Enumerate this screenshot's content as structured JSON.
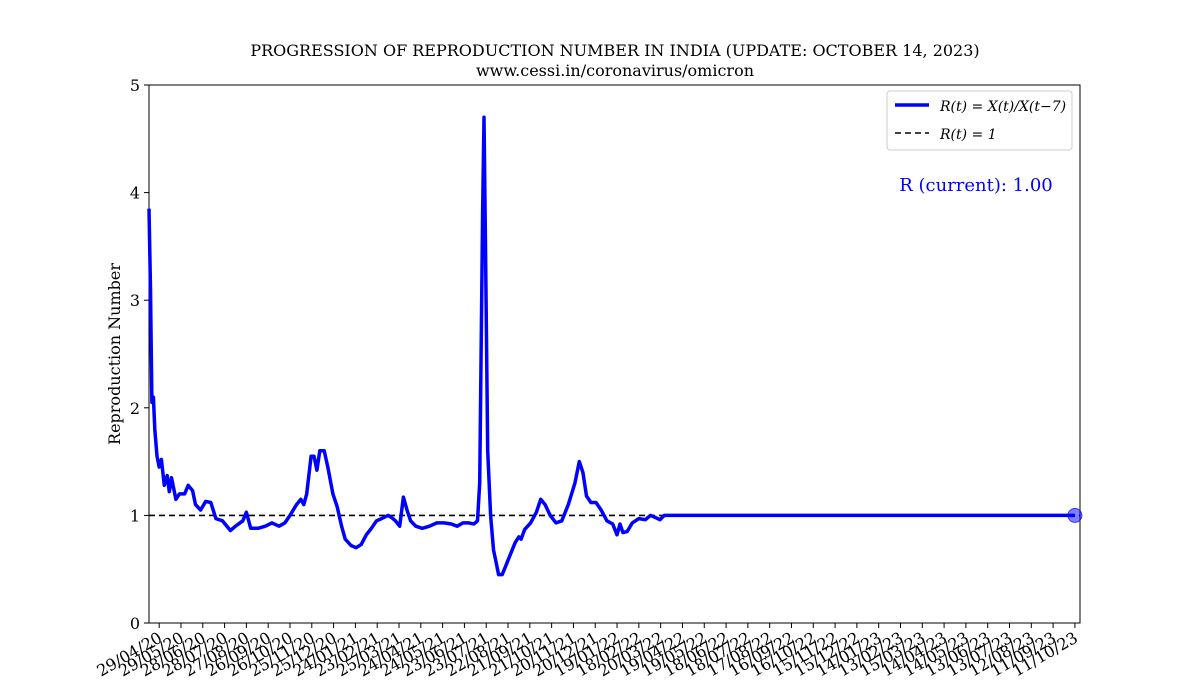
{
  "chart_data": {
    "type": "line",
    "title": "PROGRESSION OF REPRODUCTION NUMBER IN INDIA (UPDATE: OCTOBER 14, 2023)",
    "subtitle": "www.cessi.in/coronavirus/omicron",
    "xlabel": "",
    "ylabel": "Reproduction Number",
    "ylim": [
      0,
      5
    ],
    "yticks": [
      "0",
      "1",
      "2",
      "3",
      "4",
      "5"
    ],
    "xticks": [
      "29/04/20",
      "29/05/20",
      "28/06/20",
      "28/07/20",
      "27/08/20",
      "26/09/20",
      "26/10/20",
      "25/11/20",
      "25/12/20",
      "24/01/21",
      "23/02/21",
      "25/03/21",
      "24/04/21",
      "24/05/21",
      "23/06/21",
      "23/07/21",
      "22/08/21",
      "21/09/21",
      "21/10/21",
      "20/11/21",
      "20/12/21",
      "19/01/22",
      "18/02/22",
      "20/03/22",
      "19/04/22",
      "19/05/22",
      "18/06/22",
      "18/07/22",
      "17/08/22",
      "16/09/22",
      "16/10/22",
      "15/11/22",
      "15/12/22",
      "14/01/23",
      "13/02/23",
      "15/03/23",
      "14/04/23",
      "14/05/23",
      "13/06/23",
      "13/07/23",
      "12/08/23",
      "11/09/23",
      "11/10/23"
    ],
    "legend_position": "top-right",
    "grid": false,
    "annotation": "R (current): 1.00",
    "series": [
      {
        "name": "R(t) = X(t)/X(t−7)",
        "color": "#0000ff",
        "points": [
          [
            "2020-04-15",
            3.85
          ],
          [
            "2020-04-17",
            3.1
          ],
          [
            "2020-04-19",
            2.05
          ],
          [
            "2020-04-21",
            2.1
          ],
          [
            "2020-04-23",
            1.8
          ],
          [
            "2020-04-26",
            1.55
          ],
          [
            "2020-04-29",
            1.45
          ],
          [
            "2020-05-02",
            1.52
          ],
          [
            "2020-05-06",
            1.28
          ],
          [
            "2020-05-10",
            1.37
          ],
          [
            "2020-05-13",
            1.22
          ],
          [
            "2020-05-16",
            1.35
          ],
          [
            "2020-05-22",
            1.15
          ],
          [
            "2020-05-27",
            1.2
          ],
          [
            "2020-06-03",
            1.2
          ],
          [
            "2020-06-08",
            1.28
          ],
          [
            "2020-06-14",
            1.23
          ],
          [
            "2020-06-18",
            1.1
          ],
          [
            "2020-06-25",
            1.05
          ],
          [
            "2020-07-02",
            1.13
          ],
          [
            "2020-07-09",
            1.12
          ],
          [
            "2020-07-16",
            0.97
          ],
          [
            "2020-07-25",
            0.95
          ],
          [
            "2020-08-05",
            0.86
          ],
          [
            "2020-08-12",
            0.9
          ],
          [
            "2020-08-22",
            0.95
          ],
          [
            "2020-08-27",
            1.03
          ],
          [
            "2020-09-02",
            0.88
          ],
          [
            "2020-09-12",
            0.88
          ],
          [
            "2020-09-22",
            0.9
          ],
          [
            "2020-10-01",
            0.93
          ],
          [
            "2020-10-11",
            0.9
          ],
          [
            "2020-10-19",
            0.93
          ],
          [
            "2020-10-26",
            1.0
          ],
          [
            "2020-11-04",
            1.1
          ],
          [
            "2020-11-10",
            1.15
          ],
          [
            "2020-11-14",
            1.1
          ],
          [
            "2020-11-18",
            1.2
          ],
          [
            "2020-11-24",
            1.55
          ],
          [
            "2020-11-28",
            1.55
          ],
          [
            "2020-12-02",
            1.42
          ],
          [
            "2020-12-06",
            1.6
          ],
          [
            "2020-12-12",
            1.6
          ],
          [
            "2020-12-17",
            1.45
          ],
          [
            "2020-12-24",
            1.2
          ],
          [
            "2020-12-30",
            1.08
          ],
          [
            "2021-01-05",
            0.9
          ],
          [
            "2021-01-10",
            0.78
          ],
          [
            "2021-01-18",
            0.72
          ],
          [
            "2021-01-25",
            0.7
          ],
          [
            "2021-02-01",
            0.73
          ],
          [
            "2021-02-08",
            0.82
          ],
          [
            "2021-02-15",
            0.88
          ],
          [
            "2021-02-22",
            0.95
          ],
          [
            "2021-03-01",
            0.97
          ],
          [
            "2021-03-10",
            1.0
          ],
          [
            "2021-03-15",
            0.98
          ],
          [
            "2021-03-20",
            0.95
          ],
          [
            "2021-03-26",
            0.9
          ],
          [
            "2021-03-31",
            1.17
          ],
          [
            "2021-04-05",
            1.05
          ],
          [
            "2021-04-10",
            0.95
          ],
          [
            "2021-04-17",
            0.9
          ],
          [
            "2021-04-26",
            0.88
          ],
          [
            "2021-05-06",
            0.9
          ],
          [
            "2021-05-16",
            0.93
          ],
          [
            "2021-05-26",
            0.93
          ],
          [
            "2021-06-05",
            0.92
          ],
          [
            "2021-06-13",
            0.9
          ],
          [
            "2021-06-21",
            0.93
          ],
          [
            "2021-06-29",
            0.93
          ],
          [
            "2021-07-06",
            0.92
          ],
          [
            "2021-07-11",
            0.95
          ],
          [
            "2021-07-14",
            1.3
          ],
          [
            "2021-07-16",
            2.5
          ],
          [
            "2021-07-18",
            3.8
          ],
          [
            "2021-07-20",
            4.7
          ],
          [
            "2021-07-22",
            3.5
          ],
          [
            "2021-07-25",
            1.6
          ],
          [
            "2021-07-29",
            1.0
          ],
          [
            "2021-08-02",
            0.68
          ],
          [
            "2021-08-06",
            0.55
          ],
          [
            "2021-08-09",
            0.45
          ],
          [
            "2021-08-14",
            0.45
          ],
          [
            "2021-08-20",
            0.55
          ],
          [
            "2021-08-26",
            0.65
          ],
          [
            "2021-09-01",
            0.75
          ],
          [
            "2021-09-06",
            0.8
          ],
          [
            "2021-09-09",
            0.78
          ],
          [
            "2021-09-14",
            0.87
          ],
          [
            "2021-09-22",
            0.93
          ],
          [
            "2021-09-30",
            1.03
          ],
          [
            "2021-10-06",
            1.15
          ],
          [
            "2021-10-12",
            1.1
          ],
          [
            "2021-10-19",
            1.0
          ],
          [
            "2021-10-27",
            0.93
          ],
          [
            "2021-11-04",
            0.95
          ],
          [
            "2021-11-13",
            1.1
          ],
          [
            "2021-11-22",
            1.3
          ],
          [
            "2021-11-28",
            1.5
          ],
          [
            "2021-12-03",
            1.4
          ],
          [
            "2021-12-08",
            1.18
          ],
          [
            "2021-12-14",
            1.12
          ],
          [
            "2021-12-21",
            1.12
          ],
          [
            "2021-12-28",
            1.05
          ],
          [
            "2022-01-05",
            0.95
          ],
          [
            "2022-01-13",
            0.92
          ],
          [
            "2022-01-19",
            0.82
          ],
          [
            "2022-01-23",
            0.92
          ],
          [
            "2022-01-27",
            0.84
          ],
          [
            "2022-02-02",
            0.85
          ],
          [
            "2022-02-09",
            0.93
          ],
          [
            "2022-02-18",
            0.97
          ],
          [
            "2022-02-27",
            0.96
          ],
          [
            "2022-03-06",
            1.0
          ],
          [
            "2022-03-13",
            0.98
          ],
          [
            "2022-03-19",
            0.96
          ],
          [
            "2022-03-25",
            1.0
          ],
          [
            "2023-10-11",
            1.0
          ]
        ]
      },
      {
        "name": "R(t) = 1",
        "color": "#000000",
        "style": "dashed",
        "value": 1
      }
    ],
    "current_point": {
      "x": "2023-10-11",
      "y": 1.0
    }
  }
}
